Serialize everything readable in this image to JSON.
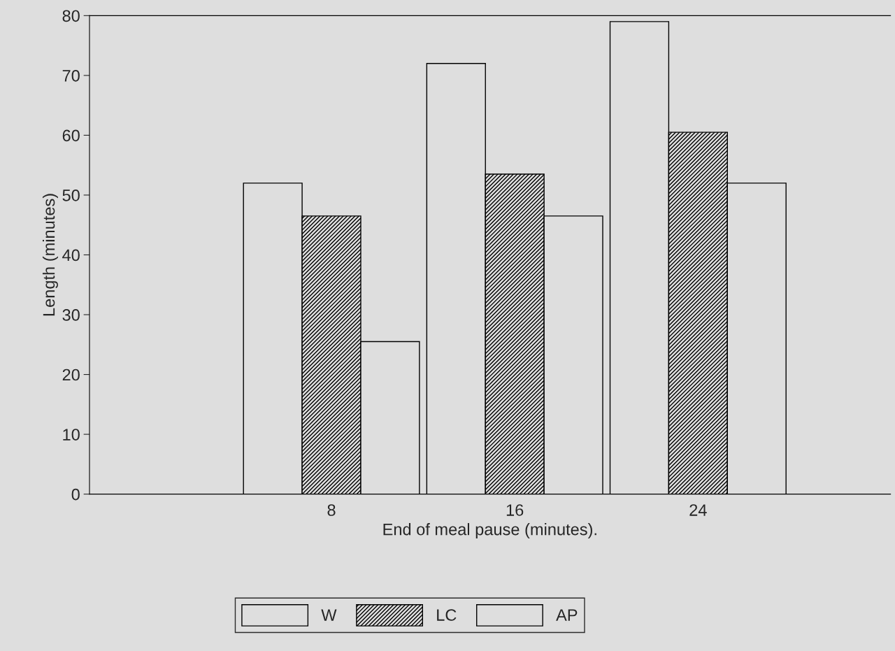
{
  "chart_data": {
    "type": "bar",
    "xlabel": "End of meal pause (minutes).",
    "ylabel": "Length (minutes)",
    "categories": [
      "8",
      "16",
      "24"
    ],
    "series": [
      {
        "name": "W",
        "color": "#dedede",
        "values": [
          52,
          72,
          79
        ]
      },
      {
        "name": "LC",
        "color": "#000000",
        "values": [
          46.5,
          53.5,
          60.5
        ]
      },
      {
        "name": "AP",
        "color": "#dedede",
        "values": [
          25.5,
          46.5,
          52
        ]
      }
    ],
    "ylim": [
      0,
      80
    ],
    "yticks": [
      0,
      10,
      20,
      30,
      40,
      50,
      60,
      70,
      80
    ],
    "grid": false,
    "legend": "bottom"
  }
}
